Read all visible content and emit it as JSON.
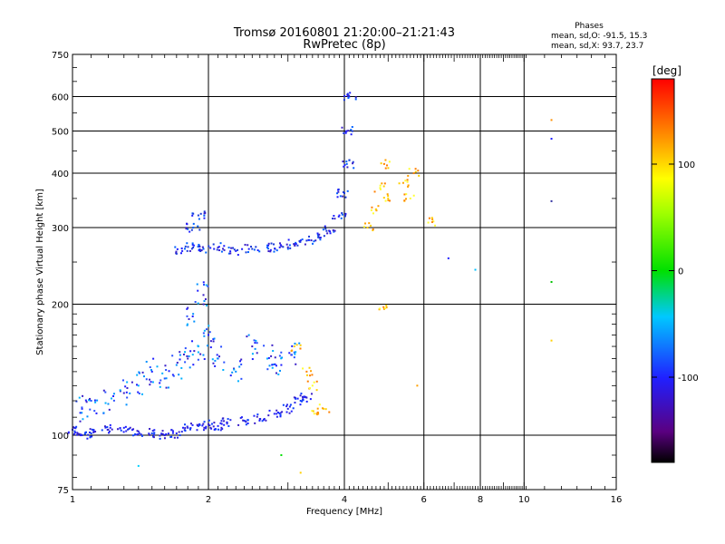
{
  "header": {
    "title_line1": "Tromsø 20160801 21:20:00–21:21:43",
    "title_line2": "RwPretec (8p)",
    "stats_title": "Phases",
    "stats_O": "mean, sd,O: -91.5, 15.3",
    "stats_X": "mean, sd,X:  93.7, 23.7"
  },
  "colorbar": {
    "label": "[deg]",
    "tick_labels": [
      "100",
      "0",
      "-100"
    ],
    "tick_values": [
      100,
      0,
      -100
    ],
    "range": [
      -180,
      180
    ],
    "palette": "rainbow (black-violet-blue-cyan-green-yellow-orange-red)"
  },
  "chart_data": {
    "type": "scatter",
    "title": "Tromsø 20160801 21:20:00–21:21:43",
    "subtitle": "RwPretec (8p)",
    "xlabel": "Frequency [MHz]",
    "ylabel": "Stationary phase Virtual Height [km]",
    "x_scale": "log",
    "y_scale": "log",
    "xlim": [
      1,
      16
    ],
    "ylim": [
      75,
      750
    ],
    "grid": true,
    "x_ticks": [
      1,
      2,
      4,
      6,
      8,
      10,
      16
    ],
    "x_tick_labels": [
      "1",
      "2",
      "4",
      "6",
      "8",
      "10",
      "16"
    ],
    "y_ticks": [
      75,
      100,
      200,
      300,
      400,
      500,
      600,
      750
    ],
    "y_tick_labels": [
      "75",
      "100",
      "200",
      "300",
      "400",
      "500",
      "600",
      "750"
    ],
    "color_variable": "phase [deg]",
    "series": [
      {
        "description": "O-mode lower trace (blue, ~-100 deg)",
        "points": [
          [
            1.0,
            103
          ],
          [
            1.05,
            100
          ],
          [
            1.1,
            101
          ],
          [
            1.2,
            103
          ],
          [
            1.3,
            104
          ],
          [
            1.4,
            102
          ],
          [
            1.5,
            101
          ],
          [
            1.6,
            100
          ],
          [
            1.7,
            101
          ],
          [
            1.8,
            104
          ],
          [
            1.9,
            105
          ],
          [
            2.0,
            106
          ],
          [
            2.1,
            105
          ],
          [
            2.2,
            107
          ],
          [
            2.4,
            108
          ],
          [
            2.6,
            109
          ],
          [
            2.8,
            112
          ],
          [
            3.0,
            115
          ],
          [
            3.2,
            120
          ],
          [
            3.3,
            122
          ]
        ]
      },
      {
        "description": "O-mode lower spread (blue, ~-100 deg)",
        "points": [
          [
            1.05,
            115
          ],
          [
            1.1,
            120
          ],
          [
            1.2,
            118
          ],
          [
            1.3,
            125
          ],
          [
            1.4,
            130
          ],
          [
            1.5,
            140
          ],
          [
            1.6,
            135
          ],
          [
            1.7,
            145
          ],
          [
            1.8,
            150
          ],
          [
            1.9,
            160
          ],
          [
            2.0,
            170
          ],
          [
            2.1,
            150
          ],
          [
            2.3,
            140
          ],
          [
            2.5,
            160
          ],
          [
            2.7,
            150
          ],
          [
            2.9,
            145
          ],
          [
            3.1,
            155
          ],
          [
            1.85,
            190
          ],
          [
            1.95,
            210
          ]
        ]
      },
      {
        "description": "F-layer trace (blue, ~-100 deg)",
        "points": [
          [
            1.75,
            265
          ],
          [
            1.85,
            270
          ],
          [
            1.95,
            268
          ],
          [
            2.1,
            270
          ],
          [
            2.3,
            265
          ],
          [
            2.5,
            268
          ],
          [
            2.7,
            270
          ],
          [
            2.9,
            272
          ],
          [
            3.1,
            275
          ],
          [
            3.3,
            280
          ],
          [
            3.5,
            285
          ],
          [
            3.7,
            295
          ],
          [
            3.9,
            320
          ],
          [
            4.0,
            360
          ],
          [
            4.05,
            420
          ],
          [
            4.05,
            500
          ],
          [
            4.1,
            600
          ],
          [
            1.9,
            320
          ],
          [
            1.85,
            300
          ]
        ]
      },
      {
        "description": "X-mode echoes (yellow/orange, ~100 deg)",
        "points": [
          [
            4.5,
            300
          ],
          [
            4.7,
            330
          ],
          [
            4.8,
            370
          ],
          [
            4.9,
            420
          ],
          [
            5.0,
            350
          ],
          [
            5.4,
            380
          ],
          [
            5.6,
            350
          ],
          [
            5.7,
            400
          ],
          [
            3.6,
            115
          ],
          [
            3.5,
            112
          ],
          [
            3.4,
            130
          ],
          [
            3.3,
            140
          ],
          [
            3.1,
            160
          ],
          [
            4.9,
            195
          ],
          [
            6.3,
            310
          ]
        ]
      },
      {
        "description": "Scattered outliers",
        "points": [
          [
            1.4,
            85
          ],
          [
            3.2,
            82
          ],
          [
            2.9,
            90
          ],
          [
            11.5,
            530
          ],
          [
            11.5,
            480
          ],
          [
            11.5,
            345
          ],
          [
            11.5,
            225
          ],
          [
            11.5,
            165
          ],
          [
            7.8,
            240
          ],
          [
            6.8,
            255
          ],
          [
            5.8,
            130
          ]
        ]
      }
    ]
  }
}
